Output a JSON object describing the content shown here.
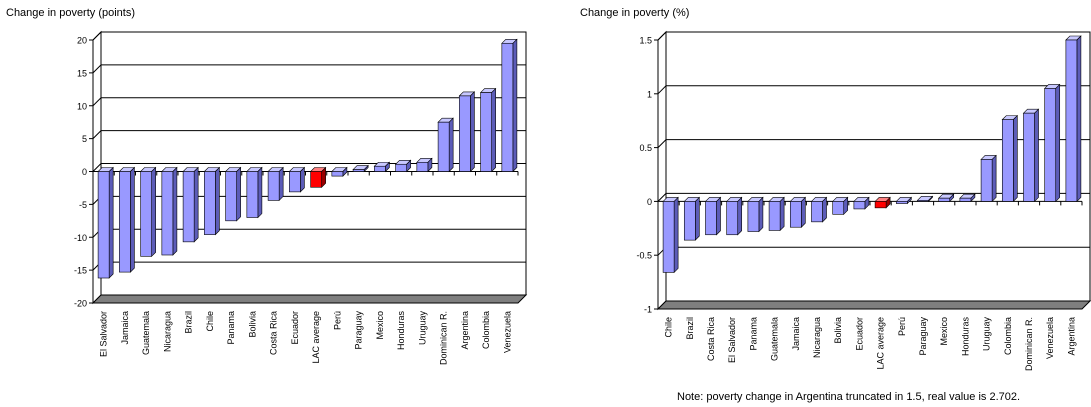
{
  "colors": {
    "bar_front": "#9999ff",
    "bar_side": "#5c5cb8",
    "bar_top": "#c8c8ff",
    "highlight_front": "#ff0000",
    "highlight_side": "#990000",
    "highlight_top": "#ff8080",
    "floor": "#7f7f7f",
    "wall": "#ffffff"
  },
  "chart_data": [
    {
      "type": "bar",
      "title": "Change in poverty (points)",
      "categories": [
        "El Salvador",
        "Jamaica",
        "Guatemala",
        "Nicaragua",
        "Brazil",
        "Chile",
        "Panama",
        "Bolivia",
        "Costa Rica",
        "Ecuador",
        "LAC average",
        "Perú",
        "Paraguay",
        "Mexico",
        "Honduras",
        "Uruguay",
        "Dominican R.",
        "Argentina",
        "Colombia",
        "Venezuela"
      ],
      "values": [
        -16.2,
        -15.3,
        -12.9,
        -12.7,
        -10.7,
        -9.6,
        -7.5,
        -7.0,
        -4.4,
        -3.1,
        -2.4,
        -0.7,
        0.3,
        0.8,
        1.1,
        1.4,
        7.5,
        11.5,
        12.0,
        19.5
      ],
      "highlight_index": 10,
      "ylim": [
        -20,
        20
      ],
      "yticks": [
        20,
        15,
        10,
        5,
        0,
        -5,
        -10,
        -15,
        -20
      ],
      "grid": true
    },
    {
      "type": "bar",
      "title": "Change in poverty (%)",
      "categories": [
        "Chile",
        "Brazil",
        "Costa Rica",
        "El Salvador",
        "Panama",
        "Guatemala",
        "Jamaica",
        "Nicaragua",
        "Bolivia",
        "Ecuador",
        "LAC average",
        "Perú",
        "Paraguay",
        "Mexico",
        "Honduras",
        "Uruguay",
        "Colombia",
        "Dominican R.",
        "Venezuela",
        "Argentina"
      ],
      "values": [
        -0.66,
        -0.36,
        -0.31,
        -0.31,
        -0.28,
        -0.27,
        -0.24,
        -0.19,
        -0.12,
        -0.07,
        -0.06,
        -0.02,
        0.01,
        0.03,
        0.03,
        0.39,
        0.76,
        0.82,
        1.05,
        1.5
      ],
      "highlight_index": 10,
      "ylim": [
        -1,
        1.5
      ],
      "yticks": [
        1.5,
        1,
        0.5,
        0,
        -0.5,
        -1
      ],
      "tick_labels": [
        "1.5",
        "1",
        "0.5",
        "0",
        "-0.5",
        "-1"
      ],
      "grid": true,
      "note": "Note: poverty change in Argentina truncated in 1.5, real value is 2.702."
    }
  ]
}
